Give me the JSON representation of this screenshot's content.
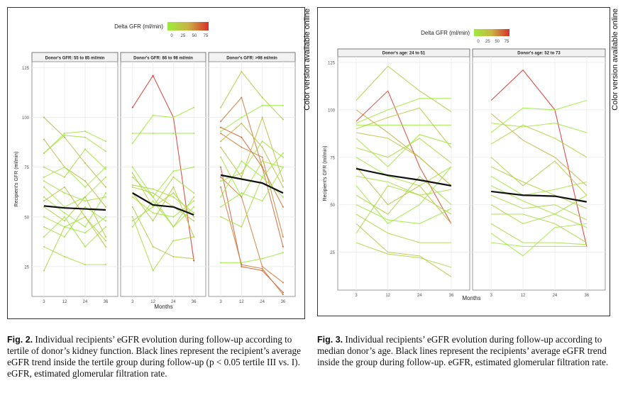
{
  "side_note": "Color version available online",
  "chart_data": [
    {
      "type": "line",
      "id": "fig2",
      "legend_title": "Delta GFR (ml/min)",
      "legend_ticks": [
        "0",
        "25",
        "50",
        "75"
      ],
      "legend_range": [
        0,
        75
      ],
      "xlabel": "Months",
      "ylabel": "Recipient's GFR (ml/min)",
      "x": [
        3,
        12,
        24,
        36
      ],
      "x_ticks": [
        "3",
        "12",
        "24",
        "36"
      ],
      "y_ticks": [
        "25",
        "50",
        "75",
        "100",
        "125"
      ],
      "ylim": [
        10,
        128
      ],
      "legend_colors": [
        "#9cec3c",
        "#c8b444",
        "#d8302a"
      ],
      "mean_color": "#111111",
      "panels": [
        {
          "title": "Donor's GFR: 55 to 85 ml/min",
          "mean": [
            55.5,
            54.5,
            54,
            53.5
          ],
          "lines": [
            [
              100,
              90,
              77,
              65
            ],
            [
              89,
              75,
              68,
              55
            ],
            [
              82,
              92,
              93,
              88
            ],
            [
              82,
              91,
              90,
              83
            ],
            [
              75,
              70,
              84,
              74
            ],
            [
              70,
              75,
              65,
              75
            ],
            [
              65,
              55,
              60,
              70
            ],
            [
              60,
              52,
              45,
              62
            ],
            [
              55,
              48,
              60,
              40
            ],
            [
              50,
              45,
              42,
              50
            ],
            [
              45,
              40,
              55,
              48
            ],
            [
              40,
              50,
              35,
              45
            ],
            [
              35,
              30,
              26,
              26
            ],
            [
              23,
              45,
              50,
              38
            ],
            [
              68,
              62,
              58,
              60
            ],
            [
              58,
              65,
              50,
              35
            ]
          ]
        },
        {
          "title": "Donor's GFR: 86 to 98 ml/min",
          "mean": [
            62,
            56,
            55,
            51
          ],
          "lines": [
            [
              105,
              121,
              100,
              28
            ],
            [
              87,
              101,
              100,
              105
            ],
            [
              92,
              92,
              92,
              92
            ],
            [
              75,
              60,
              73,
              75
            ],
            [
              72,
              55,
              70,
              62
            ],
            [
              65,
              62,
              55,
              48
            ],
            [
              60,
              52,
              50,
              58
            ],
            [
              55,
              35,
              30,
              29
            ],
            [
              50,
              23,
              38,
              40
            ],
            [
              45,
              58,
              45,
              55
            ],
            [
              62,
              48,
              65,
              40
            ],
            [
              66,
              64,
              60,
              52
            ],
            [
              70,
              60,
              45,
              60
            ],
            [
              48,
              55,
              62,
              50
            ]
          ]
        },
        {
          "title": "Donor's GFR: >98 ml/min",
          "mean": [
            71,
            69,
            67,
            62
          ],
          "lines": [
            [
              105,
              123,
              110,
              99
            ],
            [
              98,
              110,
              75,
              55
            ],
            [
              93,
              100,
              106,
              106
            ],
            [
              95,
              90,
              75,
              35
            ],
            [
              92,
              85,
              80,
              40
            ],
            [
              88,
              97,
              85,
              65
            ],
            [
              85,
              70,
              100,
              68
            ],
            [
              80,
              60,
              78,
              75
            ],
            [
              75,
              25,
              23,
              12
            ],
            [
              70,
              60,
              25,
              17
            ],
            [
              68,
              72,
              88,
              80
            ],
            [
              60,
              78,
              70,
              82
            ],
            [
              27,
              27,
              29,
              32
            ],
            [
              65,
              26,
              24,
              11
            ],
            [
              55,
              62,
              58,
              75
            ],
            [
              50,
              45,
              70,
              60
            ]
          ]
        }
      ]
    },
    {
      "type": "line",
      "id": "fig3",
      "legend_title": "Delta GFR (ml/min)",
      "legend_ticks": [
        "0",
        "25",
        "50",
        "75"
      ],
      "legend_range": [
        0,
        75
      ],
      "xlabel": "Months",
      "ylabel": "Recipient's GFR (ml/min)",
      "x": [
        3,
        12,
        24,
        36
      ],
      "x_ticks": [
        "3",
        "12",
        "24",
        "36"
      ],
      "y_ticks": [
        "25",
        "50",
        "75",
        "100",
        "125"
      ],
      "ylim": [
        5,
        128
      ],
      "legend_colors": [
        "#9cec3c",
        "#c8b444",
        "#d8302a"
      ],
      "mean_color": "#111111",
      "panels": [
        {
          "title": "Donor's age: 24 to 51",
          "mean": [
            69,
            65.5,
            63,
            60
          ],
          "lines": [
            [
              105,
              123,
              110,
              99
            ],
            [
              100,
              88,
              75,
              60
            ],
            [
              94,
              110,
              70,
              40
            ],
            [
              93,
              100,
              106,
              106
            ],
            [
              92,
              92,
              92,
              92
            ],
            [
              90,
              96,
              101,
              80
            ],
            [
              88,
              85,
              75,
              60
            ],
            [
              85,
              70,
              87,
              82
            ],
            [
              80,
              75,
              85,
              72
            ],
            [
              75,
              65,
              60,
              70
            ],
            [
              70,
              50,
              60,
              40
            ],
            [
              65,
              62,
              55,
              58
            ],
            [
              60,
              40,
              50,
              70
            ],
            [
              55,
              45,
              65,
              50
            ],
            [
              50,
              42,
              40,
              48
            ],
            [
              45,
              35,
              30,
              30
            ],
            [
              40,
              25,
              23,
              12
            ],
            [
              30,
              24,
              22,
              17
            ],
            [
              35,
              60,
              55,
              45
            ]
          ]
        },
        {
          "title": "Donor's age: 52 to 73",
          "mean": [
            57,
            55,
            54.5,
            51.5
          ],
          "lines": [
            [
              105,
              121,
              100,
              28
            ],
            [
              98,
              84,
              75,
              60
            ],
            [
              93,
              91,
              93,
              88
            ],
            [
              88,
              101,
              100,
              105
            ],
            [
              82,
              92,
              85,
              75
            ],
            [
              75,
              60,
              73,
              55
            ],
            [
              70,
              62,
              55,
              48
            ],
            [
              65,
              55,
              58,
              62
            ],
            [
              60,
              52,
              45,
              55
            ],
            [
              55,
              48,
              50,
              42
            ],
            [
              50,
              40,
              45,
              38
            ],
            [
              45,
              45,
              40,
              30
            ],
            [
              40,
              30,
              30,
              29
            ],
            [
              35,
              23,
              38,
              40
            ],
            [
              30,
              28,
              28,
              28
            ]
          ]
        }
      ]
    }
  ],
  "captions": [
    {
      "label": "Fig. 2.",
      "text": "Individual recipients’ eGFR evolution during follow-up according to tertile of donor’s kidney function. Black lines represent the recipient’s average eGFR trend inside the tertile group during follow-up (p < 0.05 tertile III vs. I). eGFR, estimated glomerular filtration rate."
    },
    {
      "label": "Fig. 3.",
      "text": "Individual recipients’ eGFR evolution during follow-up according to median donor’s age. Black lines represent the recipients’ average eGFR trend inside the group during follow-up. eGFR, estimated glomerular filtration rate."
    }
  ]
}
